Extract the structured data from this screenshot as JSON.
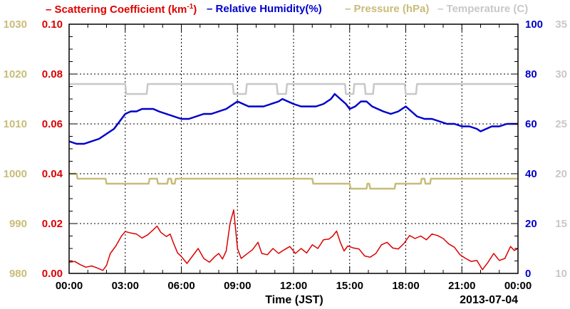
{
  "chart_data": {
    "type": "line",
    "title": "",
    "xlabel": "Time (JST)",
    "date_label": "2013-07-04",
    "x_ticks": [
      "00:00",
      "03:00",
      "06:00",
      "09:00",
      "12:00",
      "15:00",
      "18:00",
      "21:00",
      "00:00"
    ],
    "xlim_hours": [
      0,
      24
    ],
    "grid": true,
    "axes": {
      "scattering": {
        "side": "left-inner",
        "ylim": [
          0,
          0.1
        ],
        "ticks": [
          "0.00",
          "0.02",
          "0.04",
          "0.06",
          "0.08",
          "0.10"
        ],
        "color": "#dd0000"
      },
      "pressure": {
        "side": "left-outer",
        "ylim": [
          980,
          1030
        ],
        "ticks": [
          "980",
          "990",
          "1000",
          "1010",
          "1020",
          "1030"
        ],
        "color": "#c8bc78"
      },
      "humidity": {
        "side": "right-inner",
        "ylim": [
          0,
          100
        ],
        "ticks": [
          "0",
          "20",
          "40",
          "60",
          "80",
          "100"
        ],
        "color": "#0000cc"
      },
      "temperature": {
        "side": "right-outer",
        "ylim": [
          10,
          35
        ],
        "ticks": [
          "10",
          "15",
          "20",
          "25",
          "30",
          "35"
        ],
        "color": "#c8c8c8"
      }
    },
    "series": [
      {
        "key": "scattering",
        "name_parts": [
          "Scattering Coefficient (km",
          "-1",
          ")"
        ],
        "color": "#dd0000",
        "points": [
          [
            0,
            0.0045
          ],
          [
            0.3,
            0.0048
          ],
          [
            0.6,
            0.0035
          ],
          [
            0.9,
            0.0025
          ],
          [
            1.2,
            0.003
          ],
          [
            1.5,
            0.0022
          ],
          [
            1.8,
            0.0012
          ],
          [
            2.0,
            0.0032
          ],
          [
            2.2,
            0.008
          ],
          [
            2.5,
            0.011
          ],
          [
            2.8,
            0.015
          ],
          [
            3.0,
            0.0168
          ],
          [
            3.3,
            0.0162
          ],
          [
            3.6,
            0.0158
          ],
          [
            3.9,
            0.0142
          ],
          [
            4.2,
            0.0155
          ],
          [
            4.5,
            0.0175
          ],
          [
            4.7,
            0.019
          ],
          [
            4.9,
            0.0165
          ],
          [
            5.2,
            0.0148
          ],
          [
            5.4,
            0.0158
          ],
          [
            5.6,
            0.0118
          ],
          [
            5.8,
            0.0082
          ],
          [
            6.0,
            0.0068
          ],
          [
            6.3,
            0.004
          ],
          [
            6.6,
            0.007
          ],
          [
            6.9,
            0.01
          ],
          [
            7.2,
            0.006
          ],
          [
            7.5,
            0.0045
          ],
          [
            7.8,
            0.0068
          ],
          [
            8.0,
            0.008
          ],
          [
            8.2,
            0.0058
          ],
          [
            8.4,
            0.009
          ],
          [
            8.6,
            0.02
          ],
          [
            8.8,
            0.0255
          ],
          [
            9.0,
            0.01
          ],
          [
            9.2,
            0.006
          ],
          [
            9.5,
            0.0078
          ],
          [
            9.8,
            0.0095
          ],
          [
            10.1,
            0.0125
          ],
          [
            10.3,
            0.008
          ],
          [
            10.6,
            0.0075
          ],
          [
            10.9,
            0.01
          ],
          [
            11.2,
            0.008
          ],
          [
            11.5,
            0.0095
          ],
          [
            11.8,
            0.0108
          ],
          [
            12.1,
            0.008
          ],
          [
            12.4,
            0.01
          ],
          [
            12.7,
            0.0082
          ],
          [
            13.0,
            0.0115
          ],
          [
            13.3,
            0.01
          ],
          [
            13.6,
            0.0135
          ],
          [
            13.9,
            0.0138
          ],
          [
            14.1,
            0.015
          ],
          [
            14.3,
            0.017
          ],
          [
            14.5,
            0.0125
          ],
          [
            14.7,
            0.009
          ],
          [
            14.9,
            0.011
          ],
          [
            15.2,
            0.0102
          ],
          [
            15.5,
            0.0098
          ],
          [
            15.8,
            0.007
          ],
          [
            16.1,
            0.0065
          ],
          [
            16.4,
            0.008
          ],
          [
            16.7,
            0.0115
          ],
          [
            17.0,
            0.0125
          ],
          [
            17.3,
            0.0102
          ],
          [
            17.6,
            0.0098
          ],
          [
            17.9,
            0.012
          ],
          [
            18.2,
            0.0152
          ],
          [
            18.5,
            0.014
          ],
          [
            18.8,
            0.015
          ],
          [
            19.1,
            0.0135
          ],
          [
            19.4,
            0.0158
          ],
          [
            19.7,
            0.0152
          ],
          [
            20.0,
            0.014
          ],
          [
            20.3,
            0.0118
          ],
          [
            20.6,
            0.0105
          ],
          [
            20.9,
            0.0075
          ],
          [
            21.2,
            0.006
          ],
          [
            21.5,
            0.0048
          ],
          [
            21.8,
            0.0052
          ],
          [
            22.1,
            0.0015
          ],
          [
            22.4,
            0.0045
          ],
          [
            22.7,
            0.008
          ],
          [
            23.0,
            0.0052
          ],
          [
            23.3,
            0.006
          ],
          [
            23.6,
            0.0108
          ],
          [
            23.8,
            0.0092
          ],
          [
            24.0,
            0.01
          ]
        ]
      },
      {
        "key": "humidity",
        "name": "Relative Humidity(%)",
        "color": "#0000cc",
        "points": [
          [
            0,
            53
          ],
          [
            0.4,
            52
          ],
          [
            0.8,
            52
          ],
          [
            1.2,
            53
          ],
          [
            1.6,
            54
          ],
          [
            2.0,
            56
          ],
          [
            2.4,
            58
          ],
          [
            2.7,
            61
          ],
          [
            3.0,
            64
          ],
          [
            3.3,
            65
          ],
          [
            3.6,
            65
          ],
          [
            3.9,
            66
          ],
          [
            4.2,
            66
          ],
          [
            4.5,
            66
          ],
          [
            4.8,
            65
          ],
          [
            5.2,
            64
          ],
          [
            5.6,
            63
          ],
          [
            6.0,
            62
          ],
          [
            6.4,
            62
          ],
          [
            6.8,
            63
          ],
          [
            7.2,
            64
          ],
          [
            7.6,
            64
          ],
          [
            8.0,
            65
          ],
          [
            8.4,
            66
          ],
          [
            8.8,
            68
          ],
          [
            9.0,
            69
          ],
          [
            9.3,
            68
          ],
          [
            9.6,
            67
          ],
          [
            10.0,
            67
          ],
          [
            10.4,
            67
          ],
          [
            10.8,
            68
          ],
          [
            11.2,
            69
          ],
          [
            11.4,
            70
          ],
          [
            11.7,
            69
          ],
          [
            12.0,
            68
          ],
          [
            12.4,
            67
          ],
          [
            12.8,
            67
          ],
          [
            13.2,
            67
          ],
          [
            13.6,
            68
          ],
          [
            14.0,
            70
          ],
          [
            14.2,
            72
          ],
          [
            14.5,
            70
          ],
          [
            14.8,
            68
          ],
          [
            15.0,
            66
          ],
          [
            15.3,
            67
          ],
          [
            15.6,
            69
          ],
          [
            15.9,
            69
          ],
          [
            16.2,
            67
          ],
          [
            16.5,
            66
          ],
          [
            16.8,
            65
          ],
          [
            17.2,
            64
          ],
          [
            17.6,
            65
          ],
          [
            18.0,
            67
          ],
          [
            18.3,
            65
          ],
          [
            18.6,
            63
          ],
          [
            19.0,
            62
          ],
          [
            19.4,
            62
          ],
          [
            19.8,
            61
          ],
          [
            20.2,
            60
          ],
          [
            20.6,
            60
          ],
          [
            21.0,
            59
          ],
          [
            21.4,
            59
          ],
          [
            21.8,
            58
          ],
          [
            22.0,
            57
          ],
          [
            22.3,
            58
          ],
          [
            22.6,
            59
          ],
          [
            23.0,
            59
          ],
          [
            23.4,
            60
          ],
          [
            23.8,
            60
          ],
          [
            24.0,
            60
          ]
        ]
      },
      {
        "key": "pressure",
        "name": "Pressure (hPa)",
        "color": "#c8bc78",
        "points": [
          [
            0,
            1000
          ],
          [
            0.4,
            1000
          ],
          [
            0.45,
            999
          ],
          [
            1.95,
            999
          ],
          [
            2.0,
            998
          ],
          [
            4.25,
            998
          ],
          [
            4.3,
            999
          ],
          [
            4.7,
            999
          ],
          [
            4.75,
            998
          ],
          [
            5.25,
            998
          ],
          [
            5.3,
            999
          ],
          [
            5.45,
            999
          ],
          [
            5.5,
            998
          ],
          [
            5.65,
            998
          ],
          [
            5.7,
            999
          ],
          [
            13.0,
            999
          ],
          [
            13.05,
            998
          ],
          [
            15.0,
            998
          ],
          [
            15.05,
            997
          ],
          [
            15.9,
            997
          ],
          [
            15.95,
            998
          ],
          [
            16.05,
            998
          ],
          [
            16.1,
            997
          ],
          [
            17.4,
            997
          ],
          [
            17.45,
            998
          ],
          [
            18.8,
            998
          ],
          [
            18.85,
            999
          ],
          [
            19.0,
            999
          ],
          [
            19.05,
            998
          ],
          [
            19.3,
            998
          ],
          [
            19.35,
            999
          ],
          [
            24.0,
            999
          ]
        ]
      },
      {
        "key": "temperature",
        "name": "Temperature (C)",
        "color": "#c8c8c8",
        "points": [
          [
            0,
            29
          ],
          [
            3.0,
            29
          ],
          [
            3.05,
            28
          ],
          [
            4.15,
            28
          ],
          [
            4.2,
            29
          ],
          [
            8.75,
            29
          ],
          [
            8.8,
            28
          ],
          [
            9.45,
            28
          ],
          [
            9.5,
            29
          ],
          [
            11.1,
            29
          ],
          [
            11.15,
            28
          ],
          [
            11.6,
            28
          ],
          [
            11.65,
            29
          ],
          [
            14.75,
            29
          ],
          [
            14.8,
            28
          ],
          [
            15.2,
            28
          ],
          [
            15.25,
            29
          ],
          [
            15.8,
            29
          ],
          [
            15.85,
            28
          ],
          [
            16.25,
            28
          ],
          [
            16.3,
            29
          ],
          [
            17.95,
            29
          ],
          [
            18.0,
            28
          ],
          [
            18.55,
            28
          ],
          [
            18.6,
            29
          ],
          [
            24.0,
            29
          ]
        ]
      }
    ]
  }
}
